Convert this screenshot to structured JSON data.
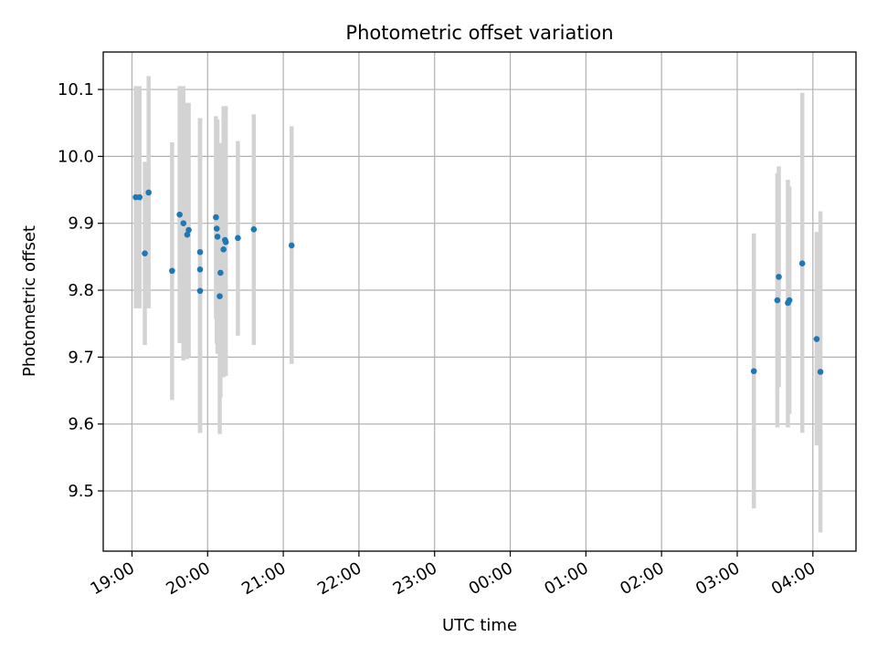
{
  "chart_data": {
    "type": "scatter",
    "title": "Photometric offset variation",
    "xlabel": "UTC time",
    "ylabel": "Photometric offset",
    "x_tick_labels": [
      "19:00",
      "20:00",
      "21:00",
      "22:00",
      "23:00",
      "00:00",
      "01:00",
      "02:00",
      "03:00",
      "04:00"
    ],
    "y_tick_labels": [
      "9.5",
      "9.6",
      "9.7",
      "9.8",
      "9.9",
      "10.0",
      "10.1"
    ],
    "grid": true,
    "legend": "none",
    "x_hours_range": [
      18.62,
      28.57
    ],
    "y_range": [
      9.41,
      10.156
    ],
    "series": [
      {
        "marker_color": "#1f77b4",
        "errorbar_color": "#d3d3d3",
        "points": [
          {
            "x_hours": 19.05,
            "y": 9.939,
            "ylo": 9.773,
            "yhi": 10.105
          },
          {
            "x_hours": 19.1,
            "y": 9.939,
            "ylo": 9.773,
            "yhi": 10.105
          },
          {
            "x_hours": 19.17,
            "y": 9.855,
            "ylo": 9.718,
            "yhi": 9.992
          },
          {
            "x_hours": 19.22,
            "y": 9.946,
            "ylo": 9.773,
            "yhi": 10.12
          },
          {
            "x_hours": 19.53,
            "y": 9.829,
            "ylo": 9.636,
            "yhi": 10.021
          },
          {
            "x_hours": 19.63,
            "y": 9.913,
            "ylo": 9.721,
            "yhi": 10.105
          },
          {
            "x_hours": 19.68,
            "y": 9.9,
            "ylo": 9.695,
            "yhi": 10.105
          },
          {
            "x_hours": 19.73,
            "y": 9.883,
            "ylo": 9.697,
            "yhi": 10.08
          },
          {
            "x_hours": 19.75,
            "y": 9.89,
            "ylo": 9.7,
            "yhi": 10.08
          },
          {
            "x_hours": 19.9,
            "y": 9.857,
            "ylo": 9.587,
            "yhi": 10.057
          },
          {
            "x_hours": 19.9,
            "y": 9.831,
            "ylo": 9.587,
            "yhi": 10.057
          },
          {
            "x_hours": 19.9,
            "y": 9.799,
            "ylo": 9.587,
            "yhi": 10.057
          },
          {
            "x_hours": 20.11,
            "y": 9.909,
            "ylo": 9.757,
            "yhi": 10.06
          },
          {
            "x_hours": 20.12,
            "y": 9.892,
            "ylo": 9.72,
            "yhi": 10.055
          },
          {
            "x_hours": 20.13,
            "y": 9.88,
            "ylo": 9.705,
            "yhi": 10.055
          },
          {
            "x_hours": 20.16,
            "y": 9.791,
            "ylo": 9.585,
            "yhi": 10.015
          },
          {
            "x_hours": 20.17,
            "y": 9.826,
            "ylo": 9.64,
            "yhi": 10.02
          },
          {
            "x_hours": 20.21,
            "y": 9.861,
            "ylo": 9.67,
            "yhi": 10.075
          },
          {
            "x_hours": 20.23,
            "y": 9.875,
            "ylo": 9.672,
            "yhi": 10.075
          },
          {
            "x_hours": 20.24,
            "y": 9.872,
            "ylo": 9.672,
            "yhi": 10.075
          },
          {
            "x_hours": 20.4,
            "y": 9.878,
            "ylo": 9.732,
            "yhi": 10.023
          },
          {
            "x_hours": 20.61,
            "y": 9.891,
            "ylo": 9.718,
            "yhi": 10.063
          },
          {
            "x_hours": 21.11,
            "y": 9.867,
            "ylo": 9.69,
            "yhi": 10.045
          },
          {
            "x_hours": 27.22,
            "y": 9.679,
            "ylo": 9.474,
            "yhi": 9.885
          },
          {
            "x_hours": 27.53,
            "y": 9.785,
            "ylo": 9.595,
            "yhi": 9.975
          },
          {
            "x_hours": 27.55,
            "y": 9.82,
            "ylo": 9.655,
            "yhi": 9.985
          },
          {
            "x_hours": 27.67,
            "y": 9.781,
            "ylo": 9.595,
            "yhi": 9.965
          },
          {
            "x_hours": 27.69,
            "y": 9.785,
            "ylo": 9.615,
            "yhi": 9.955
          },
          {
            "x_hours": 27.86,
            "y": 9.84,
            "ylo": 9.587,
            "yhi": 10.095
          },
          {
            "x_hours": 28.05,
            "y": 9.727,
            "ylo": 9.568,
            "yhi": 9.887
          },
          {
            "x_hours": 28.1,
            "y": 9.678,
            "ylo": 9.438,
            "yhi": 9.918
          }
        ]
      }
    ]
  }
}
